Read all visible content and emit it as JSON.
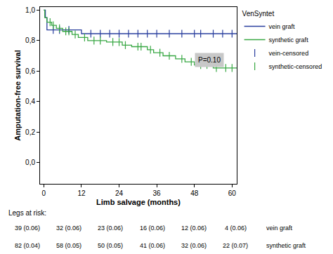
{
  "chart_data": {
    "type": "line",
    "legend_title": "VenSyntet",
    "x_label": "Limb salvage (months)",
    "y_label": "Amputation-free survival",
    "xlim": [
      -1.2,
      61.5
    ],
    "xticks": [
      0,
      12,
      24,
      36,
      48,
      60
    ],
    "ylim": [
      -0.14,
      1.02
    ],
    "yticks": [
      {
        "value": 0,
        "label": "0,0"
      },
      {
        "value": 0.2,
        "label": "0,2"
      },
      {
        "value": 0.4,
        "label": "0,4"
      },
      {
        "value": 0.6,
        "label": "0,6"
      },
      {
        "value": 0.8,
        "label": "0,8"
      },
      {
        "value": 1.0,
        "label": "1,0"
      }
    ],
    "grid": false,
    "legend": "right",
    "series": [
      {
        "name": "vein graft",
        "color": "#2a3f9e",
        "line_style": "step",
        "x": [
          0,
          0.5,
          1,
          12,
          61.5
        ],
        "values": [
          1.0,
          0.95,
          0.87,
          0.845,
          0.845
        ]
      },
      {
        "name": "synthetic graft",
        "color": "#39a844",
        "line_style": "step",
        "x": [
          0,
          0.3,
          1,
          2.5,
          4,
          6,
          9,
          11,
          14,
          20,
          25,
          28,
          33,
          35,
          38,
          42,
          45,
          48,
          54,
          61.5
        ],
        "values": [
          1.0,
          0.95,
          0.92,
          0.9,
          0.88,
          0.86,
          0.84,
          0.82,
          0.8,
          0.79,
          0.77,
          0.76,
          0.74,
          0.72,
          0.7,
          0.68,
          0.66,
          0.64,
          0.62,
          0.62
        ]
      },
      {
        "name": "vein-censored",
        "color": "#2a3f9e",
        "type": "scatter",
        "marker": "line-ns",
        "x": [
          3,
          5,
          8,
          15,
          18,
          21,
          24,
          27,
          30,
          33,
          36,
          40,
          44,
          48,
          50,
          54,
          57,
          60
        ],
        "values": [
          0.87,
          0.87,
          0.87,
          0.845,
          0.845,
          0.845,
          0.845,
          0.845,
          0.845,
          0.845,
          0.845,
          0.845,
          0.845,
          0.845,
          0.845,
          0.845,
          0.845,
          0.845
        ]
      },
      {
        "name": "synthetic-censored",
        "color": "#39a844",
        "type": "scatter",
        "marker": "line-ns",
        "x": [
          2,
          3,
          5,
          7,
          8,
          10,
          13,
          16,
          18,
          22,
          24,
          26,
          30,
          31,
          34,
          37,
          40,
          44,
          47,
          50,
          52,
          55,
          58,
          60
        ],
        "values": [
          0.92,
          0.9,
          0.88,
          0.86,
          0.86,
          0.84,
          0.82,
          0.8,
          0.8,
          0.79,
          0.79,
          0.77,
          0.76,
          0.76,
          0.74,
          0.72,
          0.7,
          0.68,
          0.66,
          0.64,
          0.64,
          0.62,
          0.62,
          0.62
        ]
      }
    ],
    "annotations": [
      "P=0.10"
    ],
    "risk_table": {
      "title": "Legs at risk:",
      "rows": [
        {
          "name": "vein graft",
          "cells": [
            "39 (0.06)",
            "32 (0.06)",
            "23 (0.06)",
            "16 (0.06)",
            "12 (0.06)",
            "4 (0.06)"
          ]
        },
        {
          "name": "synthetic graft",
          "cells": [
            "82 (0.04)",
            "58 (0.05)",
            "50 (0.05)",
            "41 (0.06)",
            "32 (0.06)",
            "22 (0.07)"
          ]
        }
      ]
    }
  }
}
